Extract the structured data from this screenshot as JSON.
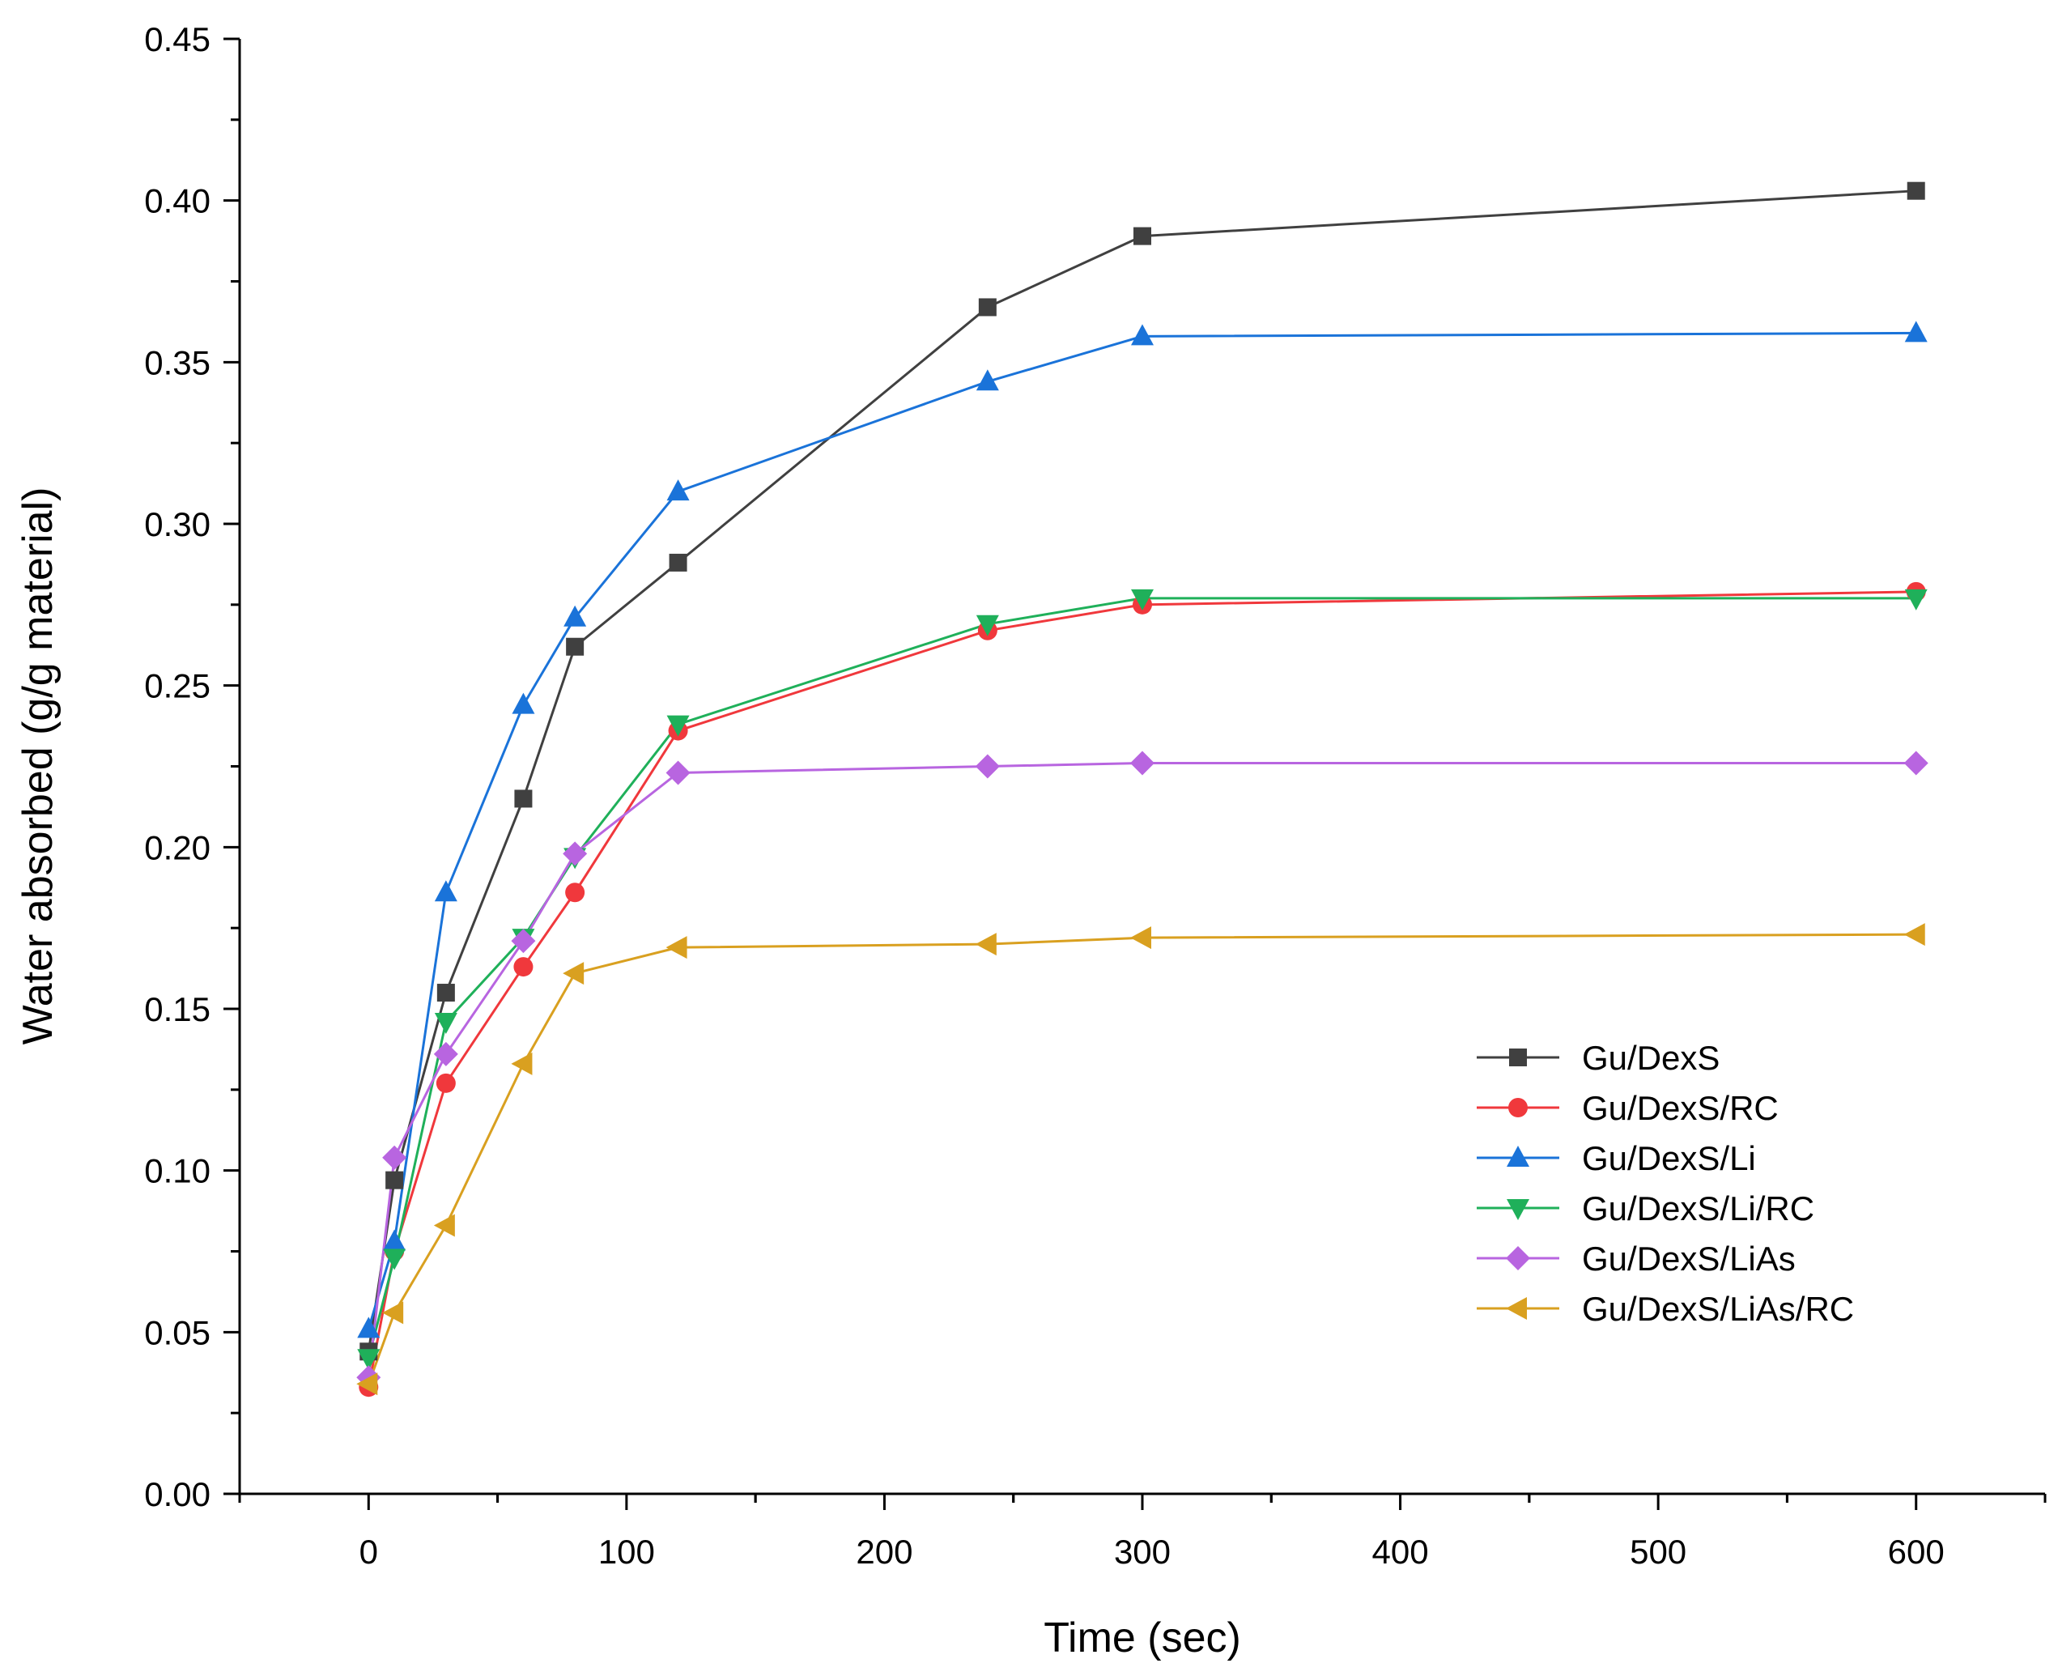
{
  "chart_data": {
    "type": "line",
    "title": "",
    "xlabel": "Time (sec)",
    "ylabel": "Water absorbed (g/g material)",
    "xlim": [
      -50,
      650
    ],
    "ylim": [
      0,
      0.45
    ],
    "xticks": [
      0,
      100,
      200,
      300,
      400,
      500,
      600
    ],
    "xtick_labels": [
      "0",
      "100",
      "200",
      "300",
      "400",
      "500",
      "600"
    ],
    "yticks": [
      0,
      0.05,
      0.1,
      0.15,
      0.2,
      0.25,
      0.3,
      0.35,
      0.4,
      0.45
    ],
    "ytick_labels": [
      "0.00",
      "0.05",
      "0.10",
      "0.15",
      "0.20",
      "0.25",
      "0.30",
      "0.35",
      "0.40",
      "0.45"
    ],
    "grid": false,
    "legend_position": "bottom-right",
    "x": [
      0,
      10,
      30,
      60,
      80,
      120,
      240,
      300,
      600
    ],
    "series": [
      {
        "name": "Gu/DexS",
        "color": "#404040",
        "marker": "square",
        "values": [
          0.044,
          0.097,
          0.155,
          0.215,
          0.262,
          0.288,
          0.367,
          0.389,
          0.403
        ]
      },
      {
        "name": "Gu/DexS/RC",
        "color": "#f0383c",
        "marker": "circle",
        "values": [
          0.033,
          0.075,
          0.127,
          0.163,
          0.186,
          0.236,
          0.267,
          0.275,
          0.279
        ]
      },
      {
        "name": "Gu/DexS/Li",
        "color": "#1a73d9",
        "marker": "triangle-up",
        "values": [
          0.051,
          0.078,
          0.186,
          0.244,
          0.271,
          0.31,
          0.344,
          0.358,
          0.359
        ]
      },
      {
        "name": "Gu/DexS/Li/RC",
        "color": "#1fb05a",
        "marker": "triangle-down",
        "values": [
          0.042,
          0.073,
          0.146,
          0.172,
          0.197,
          0.238,
          0.269,
          0.277,
          0.277
        ]
      },
      {
        "name": "Gu/DexS/LiAs",
        "color": "#b865e0",
        "marker": "diamond",
        "values": [
          0.036,
          0.104,
          0.136,
          0.171,
          0.198,
          0.223,
          0.225,
          0.226,
          0.226
        ]
      },
      {
        "name": "Gu/DexS/LiAs/RC",
        "color": "#d9a020",
        "marker": "triangle-left",
        "values": [
          0.034,
          0.056,
          0.083,
          0.133,
          0.161,
          0.169,
          0.17,
          0.172,
          0.173
        ]
      }
    ]
  }
}
